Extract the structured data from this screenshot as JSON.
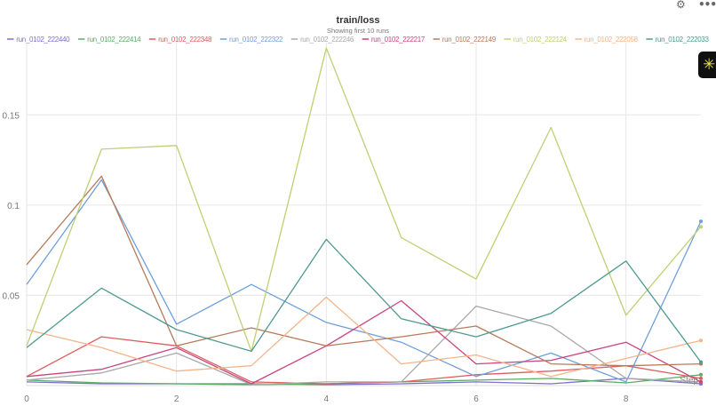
{
  "panel": {
    "title": "train/loss",
    "subtitle": "Showing first 10 runs",
    "x_axis_label": "Step"
  },
  "icons": {
    "gear": "⚙",
    "more": "•••",
    "badge": "✳"
  },
  "chart_data": {
    "type": "line",
    "title": "train/loss",
    "subtitle": "Showing first 10 runs",
    "xlabel": "Step",
    "ylabel": "",
    "xlim": [
      0,
      9
    ],
    "ylim": [
      0,
      0.19
    ],
    "x_ticks": [
      0,
      2,
      4,
      6,
      8
    ],
    "y_ticks": [
      0.05,
      0.1,
      0.15
    ],
    "x_tick_labels": [
      "0",
      "2",
      "4",
      "6",
      "8"
    ],
    "y_tick_labels": [
      "0.05",
      "0.1",
      "0.15"
    ],
    "grid": true,
    "legend_position": "top",
    "x": [
      0,
      1,
      2,
      3,
      4,
      5,
      6,
      7,
      8,
      9
    ],
    "series": [
      {
        "name": "run_0102_222440",
        "color": "#7b6fd0",
        "values": [
          0.002,
          0.001,
          0.001,
          0.001,
          0.0005,
          0.001,
          0.002,
          0.001,
          0.004,
          0.001
        ]
      },
      {
        "name": "run_0102_222414",
        "color": "#5bab63",
        "values": [
          0.003,
          0.0015,
          0.001,
          0.0005,
          0.001,
          0.002,
          0.003,
          0.004,
          0.0015,
          0.006
        ]
      },
      {
        "name": "run_0102_222348",
        "color": "#e05c5c",
        "values": [
          0.005,
          0.027,
          0.022,
          0.002,
          0.001,
          0.002,
          0.006,
          0.008,
          0.011,
          0.004
        ]
      },
      {
        "name": "run_0102_222322",
        "color": "#6f9fdb",
        "values": [
          0.056,
          0.114,
          0.034,
          0.056,
          0.035,
          0.024,
          0.005,
          0.018,
          0.002,
          0.091
        ]
      },
      {
        "name": "run_0102_222246",
        "color": "#a8a8a8",
        "values": [
          0.003,
          0.007,
          0.018,
          0.0005,
          0.002,
          0.002,
          0.044,
          0.033,
          0.004,
          0.002
        ]
      },
      {
        "name": "run_0102_222217",
        "color": "#c8457f",
        "values": [
          0.005,
          0.009,
          0.021,
          0.001,
          0.022,
          0.047,
          0.012,
          0.014,
          0.024,
          0.002
        ]
      },
      {
        "name": "run_0102_222149",
        "color": "#b87a5a",
        "values": [
          0.067,
          0.116,
          0.022,
          0.032,
          0.022,
          0.027,
          0.033,
          0.012,
          0.011,
          0.012
        ]
      },
      {
        "name": "run_0102_222124",
        "color": "#bdd074",
        "values": [
          0.022,
          0.131,
          0.133,
          0.019,
          0.187,
          0.082,
          0.059,
          0.143,
          0.039,
          0.088
        ]
      },
      {
        "name": "run_0102_222058",
        "color": "#f2b589",
        "values": [
          0.031,
          0.021,
          0.008,
          0.011,
          0.049,
          0.012,
          0.017,
          0.005,
          0.015,
          0.025
        ]
      },
      {
        "name": "run_0102_222033",
        "color": "#4e9a8e",
        "values": [
          0.021,
          0.054,
          0.031,
          0.019,
          0.081,
          0.037,
          0.027,
          0.04,
          0.069,
          0.013
        ]
      }
    ]
  }
}
